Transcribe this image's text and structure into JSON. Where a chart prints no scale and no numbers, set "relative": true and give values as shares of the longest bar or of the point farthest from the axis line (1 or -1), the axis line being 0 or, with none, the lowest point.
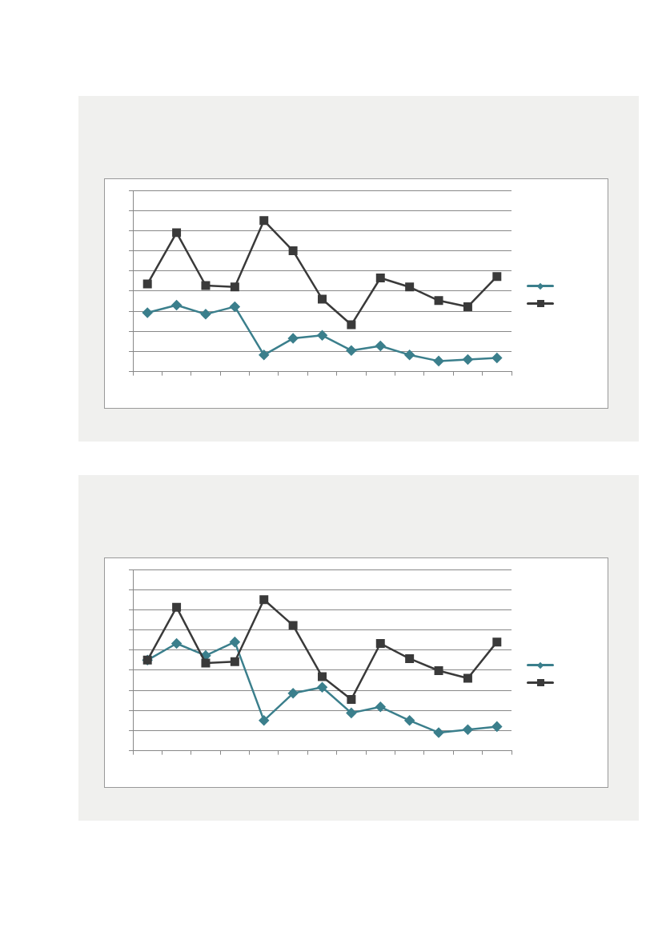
{
  "chart_data": [
    {
      "type": "line",
      "relative": true,
      "grid": "y",
      "categories": [
        null,
        null,
        null,
        null,
        null,
        null,
        null,
        null,
        null,
        null,
        null,
        null,
        null
      ],
      "series": [
        {
          "color": "#3b7f8c",
          "marker": "diamond",
          "values": [
            0.39,
            0.44,
            0.38,
            0.43,
            0.11,
            0.22,
            0.24,
            0.14,
            0.17,
            0.11,
            0.07,
            0.08,
            0.09
          ]
        },
        {
          "color": "#3a3a3a",
          "marker": "square",
          "values": [
            0.58,
            0.92,
            0.57,
            0.56,
            1,
            0.8,
            0.48,
            0.31,
            0.62,
            0.56,
            0.47,
            0.43,
            0.63
          ]
        }
      ]
    },
    {
      "type": "line",
      "relative": true,
      "grid": "y",
      "categories": [
        null,
        null,
        null,
        null,
        null,
        null,
        null,
        null,
        null,
        null,
        null,
        null,
        null
      ],
      "series": [
        {
          "color": "#3b7f8c",
          "marker": "diamond",
          "values": [
            0.6,
            0.71,
            0.63,
            0.72,
            0.2,
            0.38,
            0.42,
            0.25,
            0.29,
            0.2,
            0.12,
            0.14,
            0.16
          ]
        },
        {
          "color": "#3a3a3a",
          "marker": "square",
          "values": [
            0.6,
            0.95,
            0.58,
            0.59,
            1,
            0.83,
            0.49,
            0.34,
            0.71,
            0.61,
            0.53,
            0.48,
            0.72
          ]
        }
      ]
    }
  ]
}
